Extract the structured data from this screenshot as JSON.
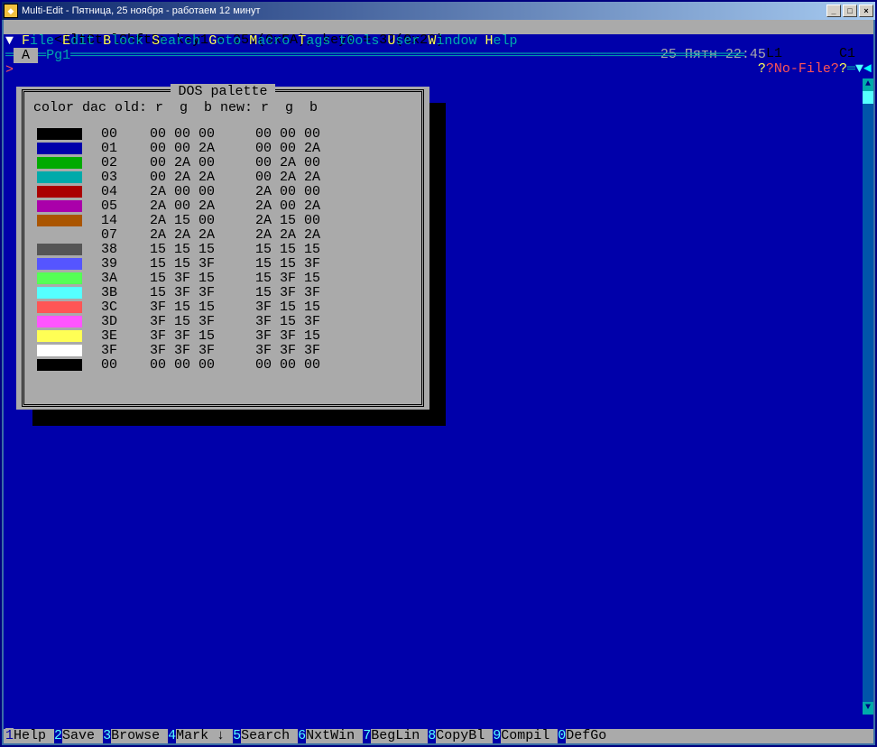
{
  "window": {
    "title": "Multi-Edit - Пятница, 25 ноября - работаем 12 минут"
  },
  "status": {
    "line": "<AltCtrlShftD> key1 = 250(0xFA), key2 = 32(0x20)",
    "pos_l": "L1",
    "pos_c": "C1"
  },
  "menu": {
    "items": [
      {
        "hot": "F",
        "rest": "ile"
      },
      {
        "hot": "E",
        "rest": "dit"
      },
      {
        "hot": "B",
        "rest": "lock"
      },
      {
        "hot": "S",
        "rest": "earch"
      },
      {
        "hot": "G",
        "rest": "oto"
      },
      {
        "hot": "M",
        "rest": "acro"
      },
      {
        "hot": "T",
        "rest": "ags"
      },
      {
        "hot": "",
        "rest": "t0ols"
      },
      {
        "hot": "U",
        "rest": "ser"
      },
      {
        "hot": "W",
        "rest": "indow"
      },
      {
        "hot": "H",
        "rest": "elp"
      }
    ],
    "date": "25 Пятн 22:45"
  },
  "tag": {
    "label": "A",
    "page": "Pg1",
    "nofile": "?No-File?"
  },
  "dialog": {
    "title": "DOS palette",
    "header": "color dac old: r  g  b new: r  g  b",
    "rows": [
      {
        "color": "#000000",
        "dac": "00",
        "or": "00",
        "og": "00",
        "ob": "00",
        "nr": "00",
        "ng": "00",
        "nb": "00"
      },
      {
        "color": "#0000aa",
        "dac": "01",
        "or": "00",
        "og": "00",
        "ob": "2A",
        "nr": "00",
        "ng": "00",
        "nb": "2A"
      },
      {
        "color": "#00aa00",
        "dac": "02",
        "or": "00",
        "og": "2A",
        "ob": "00",
        "nr": "00",
        "ng": "2A",
        "nb": "00"
      },
      {
        "color": "#00aaaa",
        "dac": "03",
        "or": "00",
        "og": "2A",
        "ob": "2A",
        "nr": "00",
        "ng": "2A",
        "nb": "2A"
      },
      {
        "color": "#aa0000",
        "dac": "04",
        "or": "2A",
        "og": "00",
        "ob": "00",
        "nr": "2A",
        "ng": "00",
        "nb": "00"
      },
      {
        "color": "#aa00aa",
        "dac": "05",
        "or": "2A",
        "og": "00",
        "ob": "2A",
        "nr": "2A",
        "ng": "00",
        "nb": "2A"
      },
      {
        "color": "#aa5500",
        "dac": "14",
        "or": "2A",
        "og": "15",
        "ob": "00",
        "nr": "2A",
        "ng": "15",
        "nb": "00"
      },
      {
        "color": "#aaaaaa",
        "dac": "07",
        "or": "2A",
        "og": "2A",
        "ob": "2A",
        "nr": "2A",
        "ng": "2A",
        "nb": "2A"
      },
      {
        "color": "#555555",
        "dac": "38",
        "or": "15",
        "og": "15",
        "ob": "15",
        "nr": "15",
        "ng": "15",
        "nb": "15"
      },
      {
        "color": "#5555ff",
        "dac": "39",
        "or": "15",
        "og": "15",
        "ob": "3F",
        "nr": "15",
        "ng": "15",
        "nb": "3F"
      },
      {
        "color": "#55ff55",
        "dac": "3A",
        "or": "15",
        "og": "3F",
        "ob": "15",
        "nr": "15",
        "ng": "3F",
        "nb": "15"
      },
      {
        "color": "#55ffff",
        "dac": "3B",
        "or": "15",
        "og": "3F",
        "ob": "3F",
        "nr": "15",
        "ng": "3F",
        "nb": "3F"
      },
      {
        "color": "#ff5555",
        "dac": "3C",
        "or": "3F",
        "og": "15",
        "ob": "15",
        "nr": "3F",
        "ng": "15",
        "nb": "15"
      },
      {
        "color": "#ff55ff",
        "dac": "3D",
        "or": "3F",
        "og": "15",
        "ob": "3F",
        "nr": "3F",
        "ng": "15",
        "nb": "3F"
      },
      {
        "color": "#ffff55",
        "dac": "3E",
        "or": "3F",
        "og": "3F",
        "ob": "15",
        "nr": "3F",
        "ng": "3F",
        "nb": "15"
      },
      {
        "color": "#ffffff",
        "dac": "3F",
        "or": "3F",
        "og": "3F",
        "ob": "3F",
        "nr": "3F",
        "ng": "3F",
        "nb": "3F"
      },
      {
        "color": "#000000",
        "dac": "00",
        "or": "00",
        "og": "00",
        "ob": "00",
        "nr": "00",
        "ng": "00",
        "nb": "00"
      }
    ]
  },
  "fkeys": [
    {
      "n": "1",
      "label": "Help"
    },
    {
      "n": "2",
      "label": "Save"
    },
    {
      "n": "3",
      "label": "Browse"
    },
    {
      "n": "4",
      "label": "Mark ↓"
    },
    {
      "n": "5",
      "label": "Search"
    },
    {
      "n": "6",
      "label": "NxtWin"
    },
    {
      "n": "7",
      "label": "BegLin"
    },
    {
      "n": "8",
      "label": "CopyBl"
    },
    {
      "n": "9",
      "label": "Compil"
    },
    {
      "n": "0",
      "label": "DefGo"
    }
  ]
}
